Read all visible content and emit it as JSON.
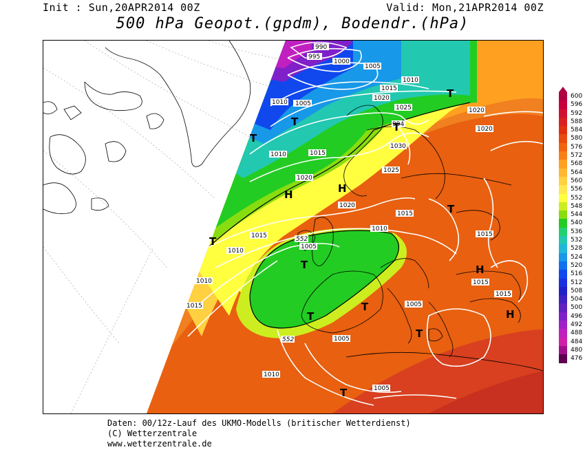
{
  "header": {
    "init": "Init : Sun,20APR2014 00Z",
    "valid": "Valid: Mon,21APR2014 00Z",
    "title": "500 hPa Geopot.(gpdm), Bodendr.(hPa)"
  },
  "map": {
    "isobar_labels": [
      "990",
      "995",
      "1000",
      "1005",
      "1010",
      "1005",
      "1015",
      "1020",
      "1025",
      "1010",
      "1005",
      "1010",
      "1015",
      "1020",
      "1030",
      "1025",
      "1020",
      "1020",
      "1015",
      "1015",
      "1010",
      "1005",
      "1015",
      "1010",
      "1015",
      "1015",
      "1005",
      "1010",
      "1015",
      "1005",
      "1010",
      "1005",
      "1020"
    ],
    "contour_labels": [
      "552",
      "552",
      "994"
    ],
    "systems": [
      "T",
      "T",
      "T",
      "H",
      "H",
      "T",
      "T",
      "T",
      "H",
      "T",
      "T",
      "T",
      "T",
      "H",
      "T"
    ]
  },
  "legend": {
    "values": [
      "600",
      "596",
      "592",
      "588",
      "584",
      "580",
      "576",
      "572",
      "568",
      "564",
      "560",
      "556",
      "552",
      "548",
      "544",
      "540",
      "536",
      "532",
      "528",
      "524",
      "520",
      "516",
      "512",
      "508",
      "504",
      "500",
      "496",
      "492",
      "488",
      "484",
      "480",
      "476"
    ],
    "colors": [
      "#b00040",
      "#c8003c",
      "#d01030",
      "#d82020",
      "#e03010",
      "#e84a10",
      "#f06410",
      "#f88018",
      "#ffa020",
      "#ffb830",
      "#ffd040",
      "#ffe850",
      "#ffff40",
      "#ccee20",
      "#88dd10",
      "#22cc22",
      "#22d070",
      "#22c8b0",
      "#20b8d8",
      "#1898e8",
      "#1070ee",
      "#1048ee",
      "#1830e0",
      "#2020c8",
      "#4020c0",
      "#6020c0",
      "#8020c8",
      "#a020c8",
      "#c020c0",
      "#d020a8",
      "#a01088",
      "#600050"
    ]
  },
  "footer": {
    "line1": "Daten: 00/12z-Lauf des UKMO-Modells (britischer Wetterdienst)",
    "line2": "(C) Wetterzentrale",
    "line3": "www.wetterzentrale.de"
  }
}
